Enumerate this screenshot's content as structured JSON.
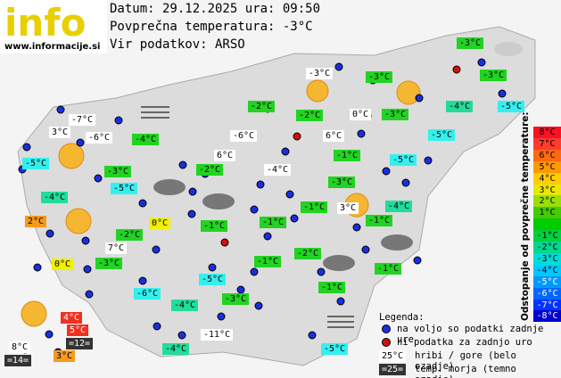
{
  "header": {
    "logo": "info",
    "url": "www.informacije.si",
    "date": "Datum: 29.12.2025 ura: 09:50",
    "average": "Povprečna temperatura: -3°C",
    "source": "Vir podatkov: ARSO"
  },
  "stations": [
    "-3°C",
    "-3°C",
    "-3°C",
    "-3°C",
    "-2°C",
    "-2°C",
    "0°C",
    "-3°C",
    "-4°C",
    "-5°C",
    "-7°C",
    "3°C",
    "-6°C",
    "-4°C",
    "-6°C",
    "6°C",
    "-5°C",
    "-5°C",
    "-3°C",
    "6°C",
    "-1°C",
    "-5°C",
    "-2°C",
    "-4°C",
    "-5°C",
    "-3°C",
    "-4°C",
    "-1°C",
    "3°C",
    "-4°C",
    "-1°C",
    "2°C",
    "0°C",
    "-1°C",
    "-1°C",
    "-2°C",
    "7°C",
    "-2°C",
    "0°C",
    "-3°C",
    "-1°C",
    "-1°C",
    "-5°C",
    "-1°C",
    "-6°C",
    "-3°C",
    "-4°C",
    "4°C",
    "5°C",
    "=12=",
    "8°C",
    "3°C",
    "=14=",
    "-11°C",
    "-4°C",
    "-5°C"
  ],
  "scale": {
    "title": "Odstopanje od povprečne temperature:",
    "positive": [
      "8°C",
      "7°C",
      "6°C",
      "5°C",
      "4°C",
      "3°C",
      "2°C",
      "1°C"
    ],
    "negative": [
      "-1°C",
      "-2°C",
      "-3°C",
      "-4°C",
      "-5°C",
      "-6°C",
      "-7°C",
      "-8°C"
    ]
  },
  "legend": {
    "title": "Legenda:",
    "available": "na voljo so podatki zadnje ure",
    "missing": "ni podatka za zadnjo uro",
    "mountain_sample": "25°C",
    "mountain": "hribi / gore (belo ozadje)",
    "sea_sample": "=25=",
    "sea": "temp. morja (temno ozadje)"
  }
}
